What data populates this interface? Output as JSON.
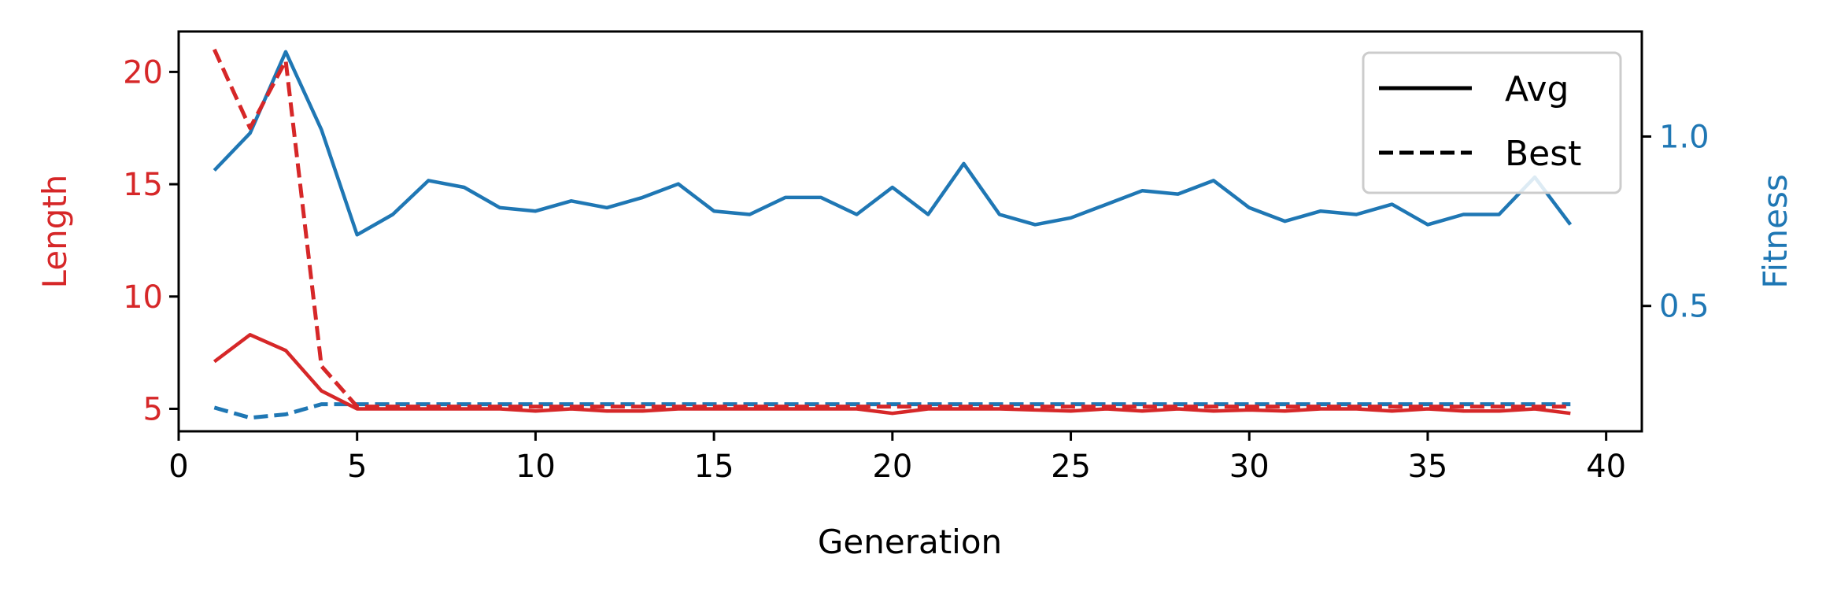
{
  "chart_data": {
    "type": "line",
    "xlabel": "Generation",
    "ylabel_left": "Length",
    "ylabel_right": "Fitness",
    "xlim": [
      0,
      41
    ],
    "ylim_left": [
      4,
      21.8
    ],
    "ylim_right": [
      0.13,
      1.31
    ],
    "x_ticks": [
      0,
      5,
      10,
      15,
      20,
      25,
      30,
      35,
      40
    ],
    "y_left_ticks": [
      5,
      10,
      15,
      20
    ],
    "y_right_ticks": [
      0.5,
      1.0
    ],
    "y_right_tick_labels": [
      "0.5",
      "1.0"
    ],
    "grid": false,
    "legend_position": "top-right",
    "legend": [
      {
        "label": "Avg",
        "style": "solid"
      },
      {
        "label": "Best",
        "style": "dashed"
      }
    ],
    "colors": {
      "length": "#d62728",
      "fitness": "#1f77b4",
      "axis": "#000000"
    },
    "x": [
      1,
      2,
      3,
      4,
      5,
      6,
      7,
      8,
      9,
      10,
      11,
      12,
      13,
      14,
      15,
      16,
      17,
      18,
      19,
      20,
      21,
      22,
      23,
      24,
      25,
      26,
      27,
      28,
      29,
      30,
      31,
      32,
      33,
      34,
      35,
      36,
      37,
      38,
      39
    ],
    "series": [
      {
        "name": "Avg",
        "metric": "Length",
        "axis": "left",
        "dash": "solid",
        "values": [
          7.1,
          8.3,
          7.6,
          5.8,
          5.0,
          5.0,
          5.0,
          5.0,
          5.0,
          4.9,
          5.0,
          4.9,
          4.9,
          5.0,
          5.0,
          5.0,
          5.0,
          5.0,
          5.0,
          4.8,
          5.0,
          5.0,
          5.0,
          4.95,
          4.9,
          5.0,
          4.9,
          5.0,
          4.9,
          4.95,
          4.9,
          5.0,
          5.0,
          4.9,
          5.0,
          4.9,
          4.9,
          5.0,
          4.8
        ]
      },
      {
        "name": "Best",
        "metric": "Length",
        "axis": "left",
        "dash": "dashed",
        "values": [
          21.0,
          17.5,
          20.5,
          6.9,
          5.1,
          5.1,
          5.1,
          5.1,
          5.1,
          5.1,
          5.1,
          5.1,
          5.1,
          5.1,
          5.1,
          5.1,
          5.1,
          5.1,
          5.1,
          5.1,
          5.1,
          5.1,
          5.1,
          5.1,
          5.1,
          5.1,
          5.1,
          5.1,
          5.1,
          5.1,
          5.1,
          5.1,
          5.1,
          5.1,
          5.1,
          5.1,
          5.1,
          5.1,
          5.1
        ]
      },
      {
        "name": "Avg",
        "metric": "Fitness",
        "axis": "right",
        "dash": "solid",
        "values": [
          0.9,
          1.01,
          1.25,
          1.02,
          0.71,
          0.77,
          0.87,
          0.85,
          0.79,
          0.78,
          0.81,
          0.79,
          0.82,
          0.86,
          0.78,
          0.77,
          0.82,
          0.82,
          0.77,
          0.85,
          0.77,
          0.92,
          0.77,
          0.74,
          0.76,
          0.8,
          0.84,
          0.83,
          0.87,
          0.79,
          0.75,
          0.78,
          0.77,
          0.8,
          0.74,
          0.77,
          0.77,
          0.88,
          0.74
        ]
      },
      {
        "name": "Best",
        "metric": "Fitness",
        "axis": "right",
        "dash": "dashed",
        "values": [
          0.2,
          0.17,
          0.18,
          0.21,
          0.21,
          0.21,
          0.21,
          0.21,
          0.21,
          0.21,
          0.21,
          0.21,
          0.21,
          0.21,
          0.21,
          0.21,
          0.21,
          0.21,
          0.21,
          0.21,
          0.21,
          0.21,
          0.21,
          0.21,
          0.21,
          0.21,
          0.21,
          0.21,
          0.21,
          0.21,
          0.21,
          0.21,
          0.21,
          0.21,
          0.21,
          0.21,
          0.21,
          0.21,
          0.21
        ]
      }
    ]
  }
}
